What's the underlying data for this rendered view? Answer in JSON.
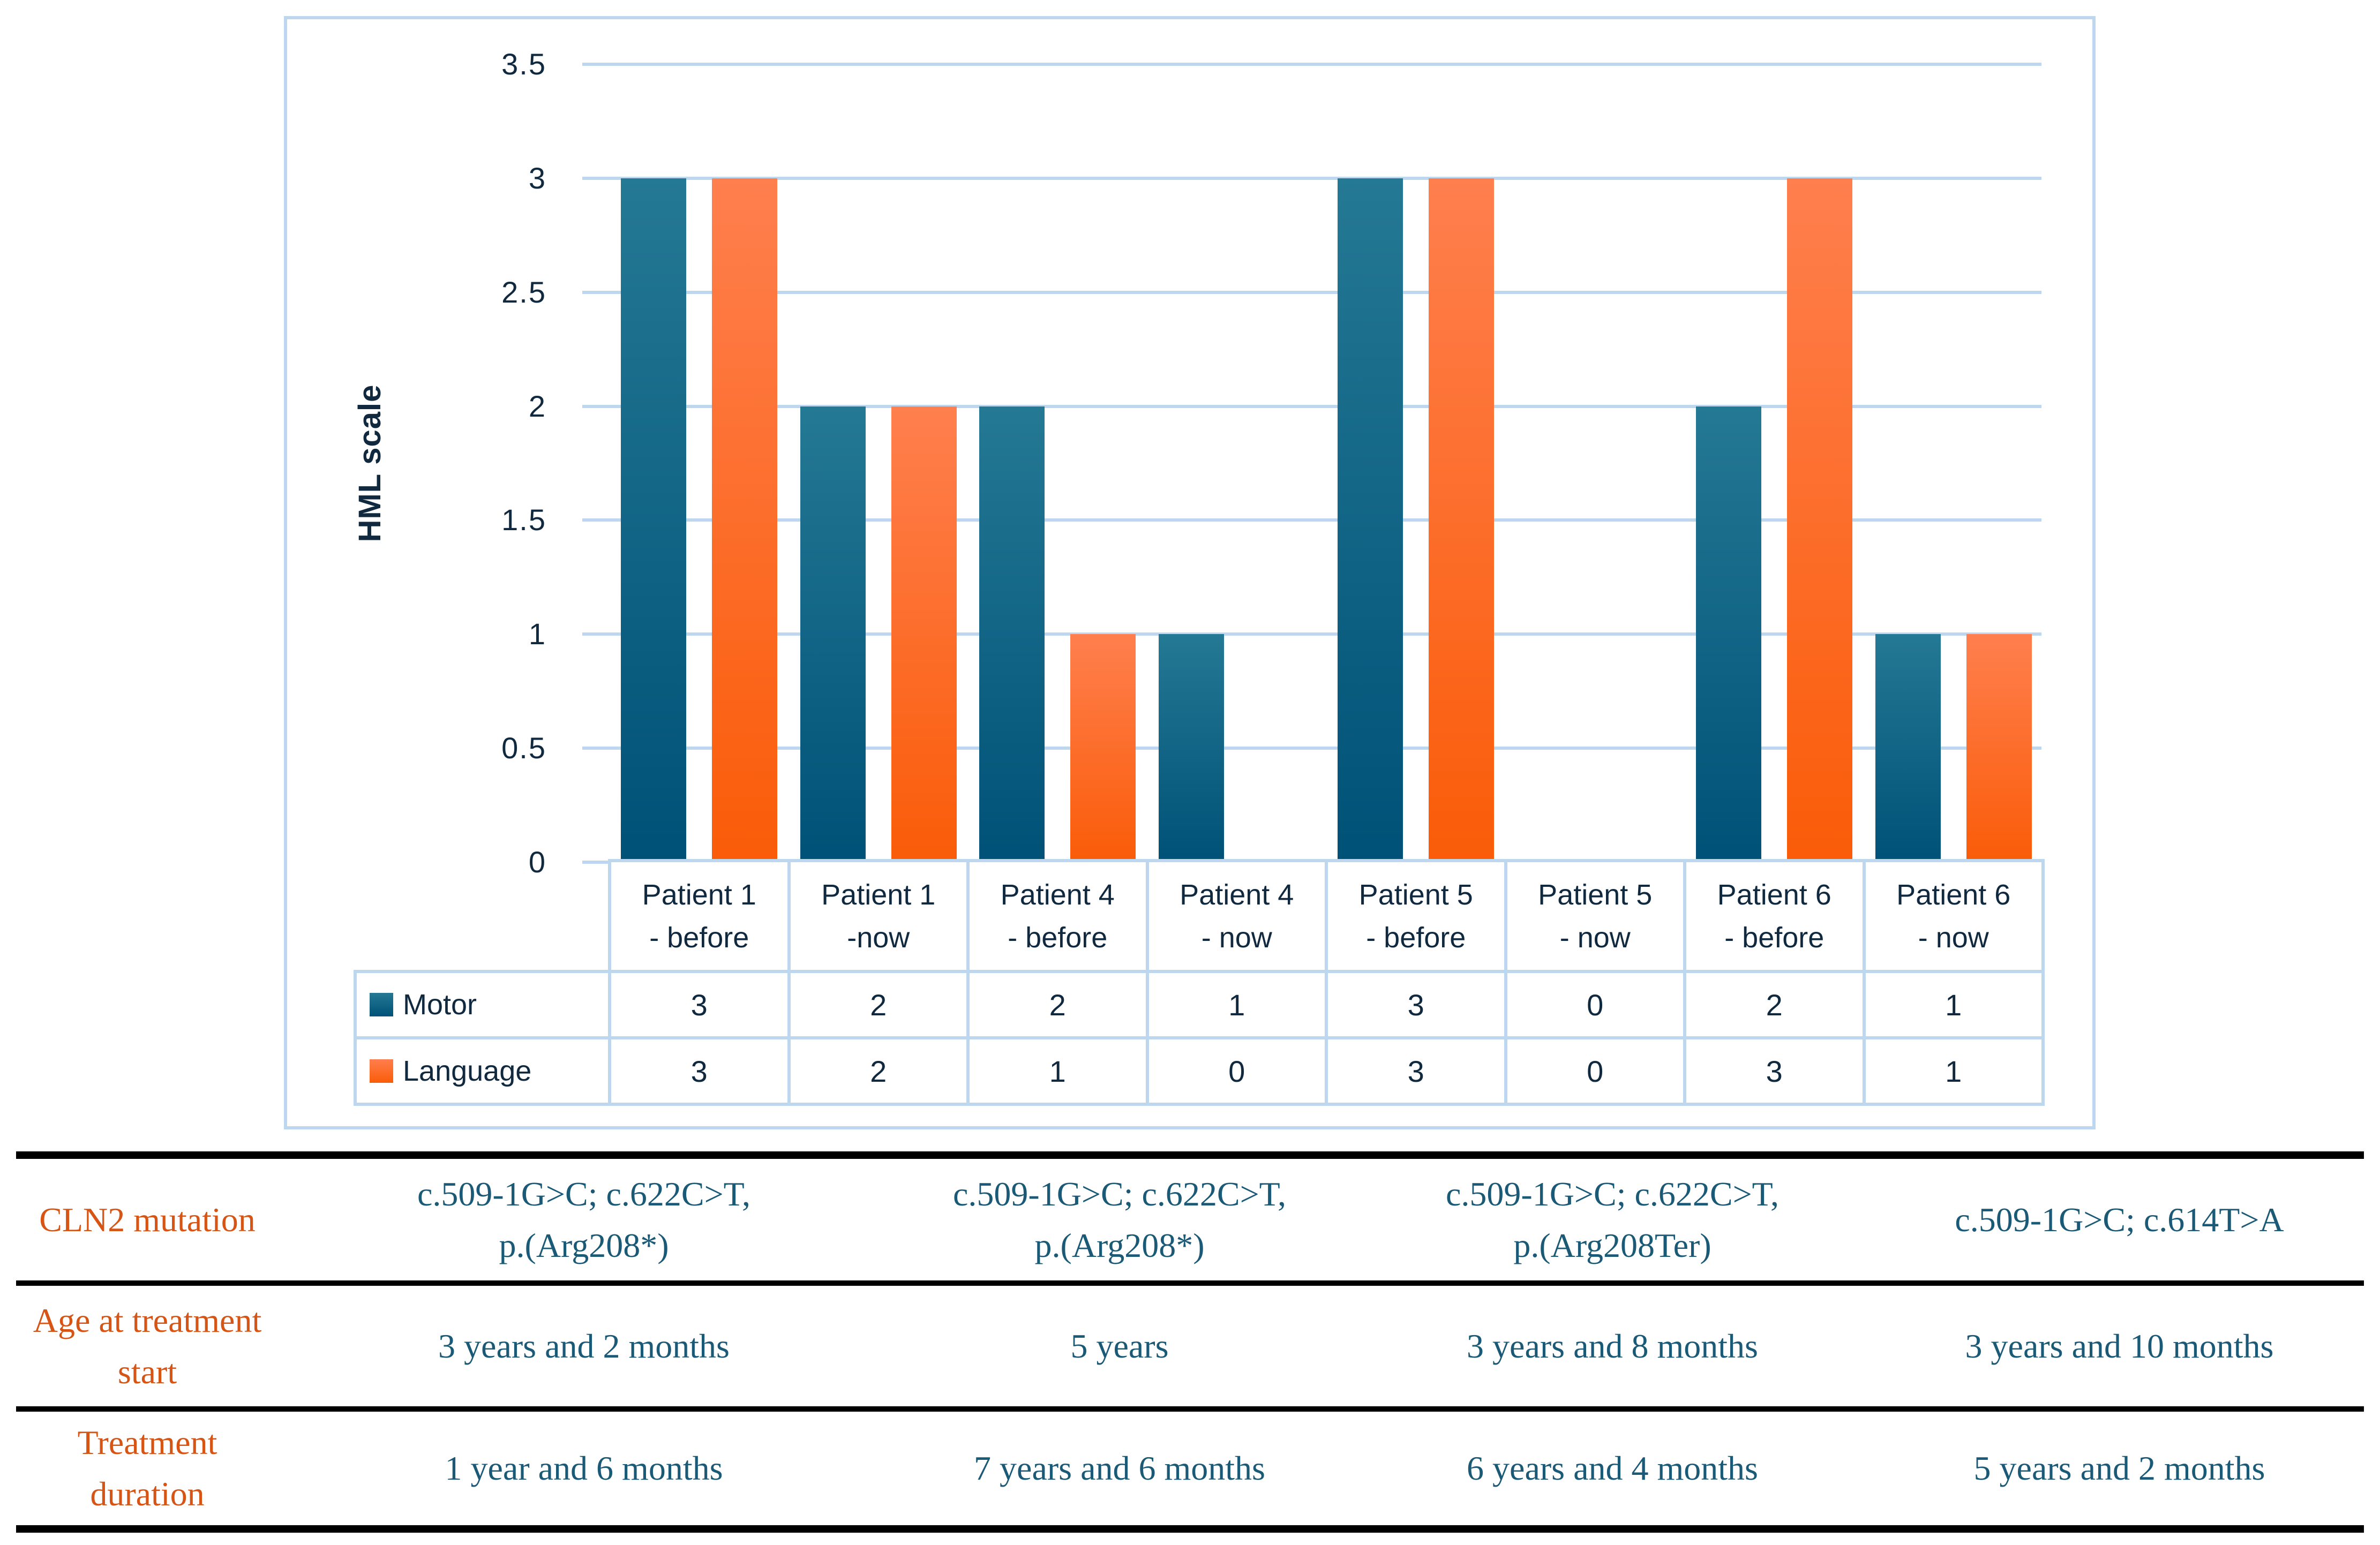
{
  "colors": {
    "grid_blue": "#bdd7ee",
    "text_navy": "#10293f",
    "motor_top": "#247994",
    "motor_bottom": "#005177",
    "language_top": "#ff7f4e",
    "language_bottom": "#fa5c08",
    "table_label_orange": "#d65414",
    "table_value_teal": "#1b5a77",
    "rule_black": "#000000"
  },
  "chart_data": {
    "type": "bar",
    "title": "",
    "categories": [
      "Patient 1 - before",
      "Patient 1 -now",
      "Patient 4 - before",
      "Patient 4 - now",
      "Patient 5 - before",
      "Patient 5 - now",
      "Patient 6 - before",
      "Patient 6 - now"
    ],
    "series": [
      {
        "name": "Motor",
        "values": [
          3,
          2,
          2,
          1,
          3,
          0,
          2,
          1
        ]
      },
      {
        "name": "Language",
        "values": [
          3,
          2,
          1,
          0,
          3,
          0,
          3,
          1
        ]
      }
    ],
    "xlabel": "",
    "ylabel": "HML scale",
    "ylim": [
      0,
      3.5
    ],
    "ytick_step": 0.5,
    "grid": true,
    "legend_position": "left-table",
    "data_table_shown": true
  },
  "bottom_table": {
    "rows": [
      {
        "label": "CLN2 mutation",
        "values": [
          "c.509-1G>C; c.622C>T,\np.(Arg208*)",
          "c.509-1G>C; c.622C>T,\np.(Arg208*)",
          "c.509-1G>C; c.622C>T,\np.(Arg208Ter)",
          "c.509-1G>C; c.614T>A"
        ]
      },
      {
        "label": "Age at treatment\nstart",
        "values": [
          "3 years and 2 months",
          "5 years",
          "3 years and 8 months",
          "3 years and 10 months"
        ]
      },
      {
        "label": "Treatment\nduration",
        "values": [
          "1 year and 6 months",
          "7 years and 6 months",
          "6 years and 4 months",
          "5 years and 2 months"
        ]
      }
    ]
  }
}
